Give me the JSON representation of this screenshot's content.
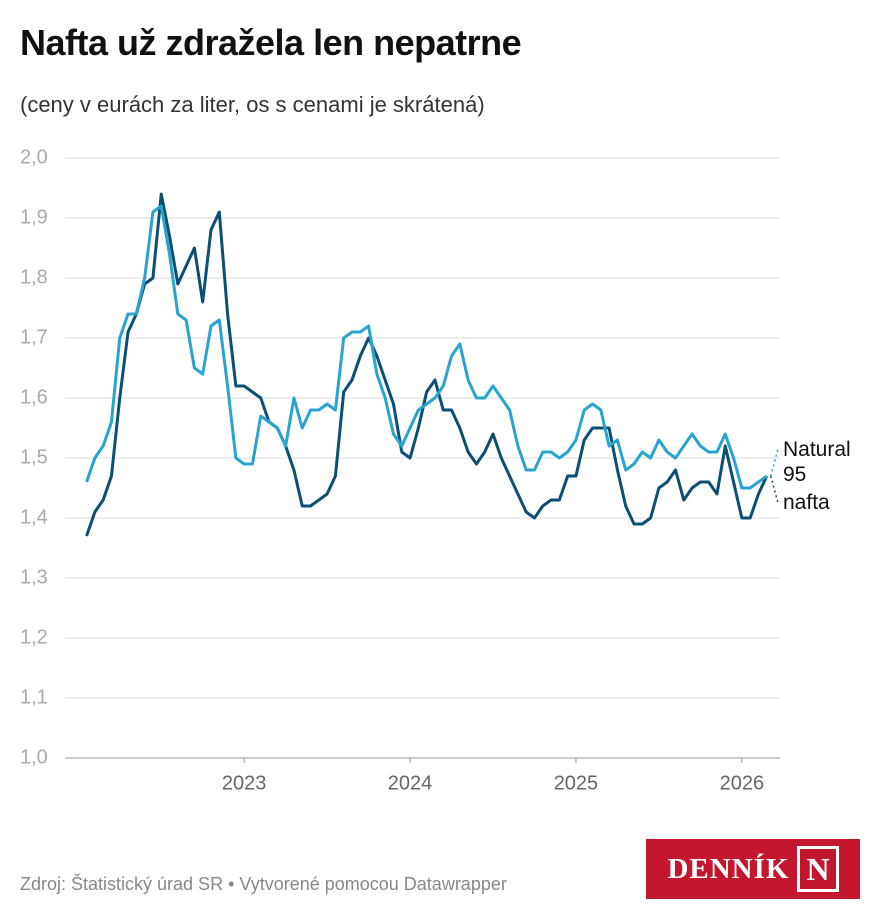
{
  "chart_data": {
    "type": "line",
    "title": "Nafta už zdražela len nepatrne",
    "subtitle": "(ceny v eurách za liter, os s cenami je skrátená)",
    "x": [
      2022.05,
      2022.1,
      2022.15,
      2022.2,
      2022.25,
      2022.3,
      2022.35,
      2022.4,
      2022.45,
      2022.5,
      2022.55,
      2022.6,
      2022.65,
      2022.7,
      2022.75,
      2022.8,
      2022.85,
      2022.9,
      2022.95,
      2023,
      2023.05,
      2023.1,
      2023.15,
      2023.2,
      2023.25,
      2023.3,
      2023.35,
      2023.4,
      2023.45,
      2023.5,
      2023.55,
      2023.6,
      2023.65,
      2023.7,
      2023.75,
      2023.8,
      2023.85,
      2023.9,
      2023.95,
      2024,
      2024.05,
      2024.1,
      2024.15,
      2024.2,
      2024.25,
      2024.3,
      2024.35,
      2024.4,
      2024.45,
      2024.5,
      2024.55,
      2024.6,
      2024.65,
      2024.7,
      2024.75,
      2024.8,
      2024.85,
      2024.9,
      2024.95,
      2025,
      2025.05,
      2025.1,
      2025.15,
      2025.2,
      2025.25,
      2025.3,
      2025.35,
      2025.4,
      2025.45,
      2025.5,
      2025.55,
      2025.6,
      2025.65,
      2025.7,
      2025.75,
      2025.8,
      2025.85,
      2025.9,
      2025.95,
      2026,
      2026.05,
      2026.1,
      2026.15
    ],
    "series": [
      {
        "name": "Natural 95",
        "color": "#29a3cf",
        "values": [
          1.46,
          1.5,
          1.52,
          1.56,
          1.7,
          1.74,
          1.74,
          1.8,
          1.91,
          1.92,
          1.84,
          1.74,
          1.73,
          1.65,
          1.64,
          1.72,
          1.73,
          1.62,
          1.5,
          1.49,
          1.49,
          1.57,
          1.56,
          1.55,
          1.52,
          1.6,
          1.55,
          1.58,
          1.58,
          1.59,
          1.58,
          1.7,
          1.71,
          1.71,
          1.72,
          1.64,
          1.6,
          1.54,
          1.52,
          1.55,
          1.58,
          1.59,
          1.6,
          1.62,
          1.67,
          1.69,
          1.63,
          1.6,
          1.6,
          1.62,
          1.6,
          1.58,
          1.52,
          1.48,
          1.48,
          1.51,
          1.51,
          1.5,
          1.51,
          1.53,
          1.58,
          1.59,
          1.58,
          1.52,
          1.53,
          1.48,
          1.49,
          1.51,
          1.5,
          1.53,
          1.51,
          1.5,
          1.52,
          1.54,
          1.52,
          1.51,
          1.51,
          1.54,
          1.5,
          1.45,
          1.45,
          1.46,
          1.47
        ]
      },
      {
        "name": "nafta",
        "color": "#0b4f75",
        "values": [
          1.37,
          1.41,
          1.43,
          1.47,
          1.6,
          1.71,
          1.74,
          1.79,
          1.8,
          1.94,
          1.87,
          1.79,
          1.82,
          1.85,
          1.76,
          1.88,
          1.91,
          1.74,
          1.62,
          1.62,
          1.61,
          1.6,
          1.56,
          1.55,
          1.52,
          1.48,
          1.42,
          1.42,
          1.43,
          1.44,
          1.47,
          1.61,
          1.63,
          1.67,
          1.7,
          1.67,
          1.63,
          1.59,
          1.51,
          1.5,
          1.55,
          1.61,
          1.63,
          1.58,
          1.58,
          1.55,
          1.51,
          1.49,
          1.51,
          1.54,
          1.5,
          1.47,
          1.44,
          1.41,
          1.4,
          1.42,
          1.43,
          1.43,
          1.47,
          1.47,
          1.53,
          1.55,
          1.55,
          1.55,
          1.48,
          1.42,
          1.39,
          1.39,
          1.4,
          1.45,
          1.46,
          1.48,
          1.43,
          1.45,
          1.46,
          1.46,
          1.44,
          1.52,
          1.46,
          1.4,
          1.4,
          1.44,
          1.47
        ]
      }
    ],
    "xlim": [
      2021.92,
      2026.23
    ],
    "xticks": [
      2023,
      2024,
      2025,
      2026
    ],
    "ylim": [
      1.0,
      2.0
    ],
    "yticks": [
      {
        "value": 1.0,
        "label": "1,0"
      },
      {
        "value": 1.1,
        "label": "1,1"
      },
      {
        "value": 1.2,
        "label": "1,2"
      },
      {
        "value": 1.3,
        "label": "1,3"
      },
      {
        "value": 1.4,
        "label": "1,4"
      },
      {
        "value": 1.5,
        "label": "1,5"
      },
      {
        "value": 1.6,
        "label": "1,6"
      },
      {
        "value": 1.7,
        "label": "1,7"
      },
      {
        "value": 1.8,
        "label": "1,8"
      },
      {
        "value": 1.9,
        "label": "1,9"
      },
      {
        "value": 2.0,
        "label": "2,0"
      }
    ],
    "grid": true,
    "source": "Zdroj: Štatistický úrad SR • Vytvorené pomocou Datawrapper",
    "logo": {
      "word": "DENNÍK",
      "letter": "N"
    }
  }
}
